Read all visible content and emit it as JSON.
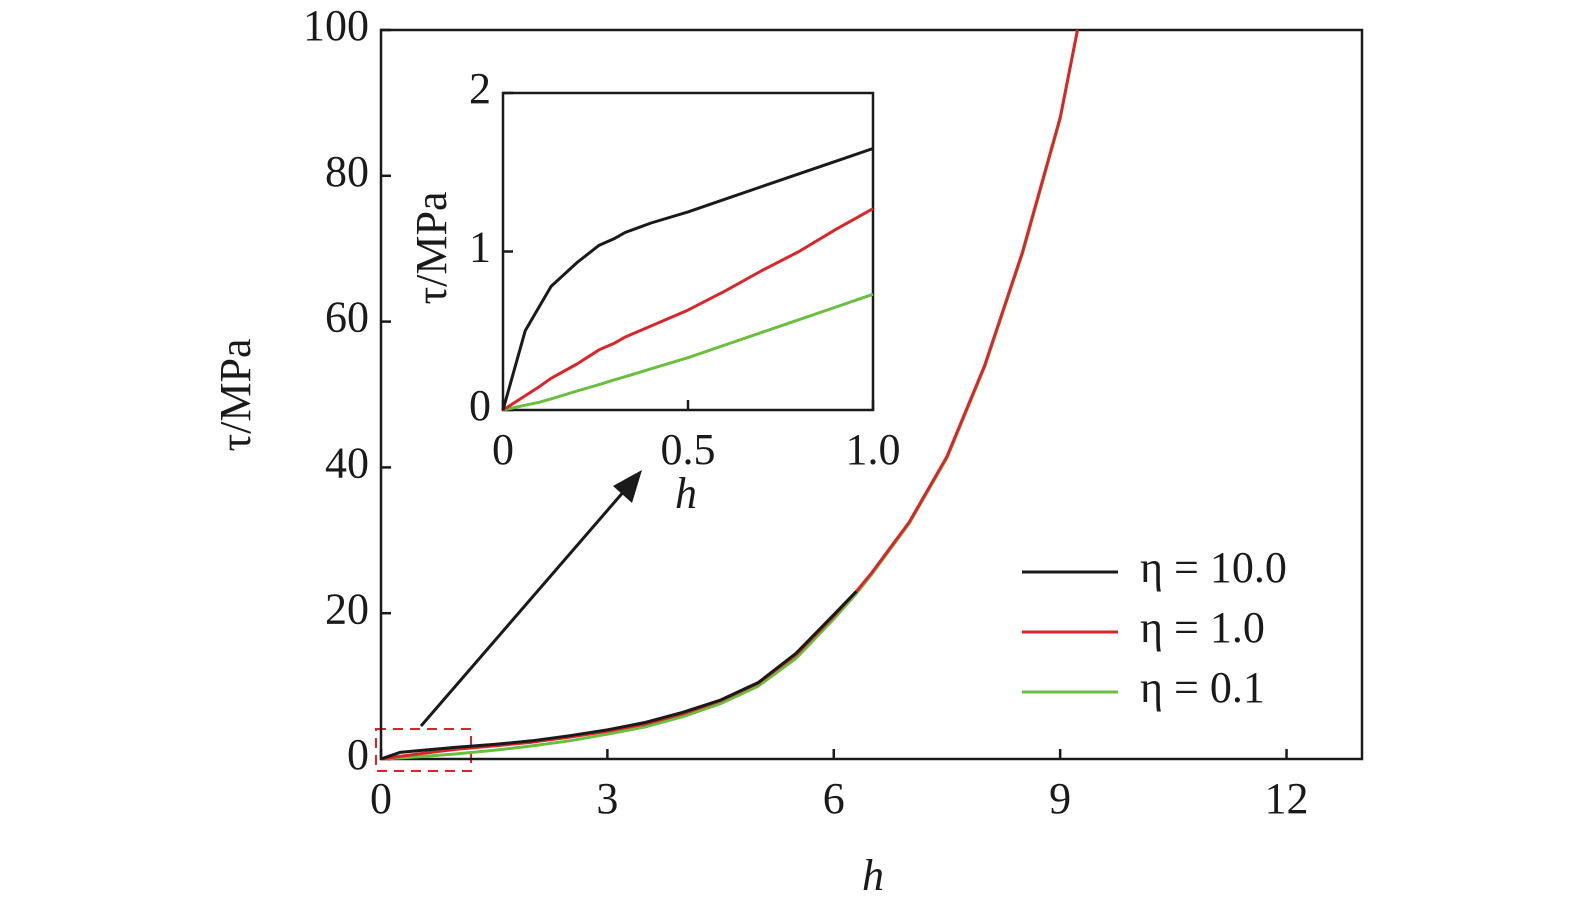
{
  "chart_data": [
    {
      "type": "line",
      "xlabel": "h",
      "ylabel": "τ/MPa",
      "x": [
        0,
        0.25,
        0.5,
        1,
        1.5,
        2,
        2.5,
        3,
        3.5,
        4,
        4.5,
        5,
        5.5,
        6,
        6.3,
        6.5,
        7,
        7.5,
        8,
        8.5,
        9,
        9.23
      ],
      "series": [
        {
          "name": "η = 10.0",
          "color": "#1a1a1a",
          "values": [
            0,
            0.9,
            1.15,
            1.6,
            2.0,
            2.5,
            3.2,
            4.0,
            5.0,
            6.4,
            8.1,
            10.5,
            14.5,
            19.8,
            23,
            null,
            null,
            null,
            null,
            null,
            null,
            null
          ]
        },
        {
          "name": "η = 1.0",
          "color": "#d9262b",
          "values": [
            0,
            0.35,
            0.7,
            1.35,
            1.8,
            2.3,
            3.0,
            3.8,
            4.8,
            6.2,
            8.0,
            10.4,
            14.3,
            19.6,
            23,
            25.5,
            32.5,
            41.5,
            54,
            69.5,
            88,
            100
          ]
        },
        {
          "name": "η = 0.1",
          "color": "#6abf3f",
          "values": [
            0,
            0.15,
            0.3,
            0.7,
            1.2,
            1.8,
            2.5,
            3.4,
            4.4,
            5.8,
            7.6,
            10,
            13.8,
            19.2,
            22.7,
            25.3,
            32.3,
            41.3,
            53.8,
            69.3,
            87.8,
            100
          ]
        }
      ],
      "xlim": [
        0,
        13
      ],
      "ylim": [
        0,
        100
      ],
      "xticks": [
        0,
        3,
        6,
        9,
        12
      ],
      "yticks": [
        0,
        20,
        40,
        60,
        80,
        100
      ],
      "legend": "lower right"
    },
    {
      "type": "line",
      "xlabel": "h",
      "ylabel": "τ/MPa",
      "x": [
        0,
        0.06,
        0.1,
        0.13,
        0.2,
        0.26,
        0.3,
        0.33,
        0.4,
        0.5,
        0.6,
        0.7,
        0.8,
        0.9,
        1.0
      ],
      "series": [
        {
          "color": "#1a1a1a",
          "values": [
            0,
            0.5,
            0.66,
            0.78,
            0.93,
            1.04,
            1.08,
            1.12,
            1.18,
            1.25,
            1.33,
            1.41,
            1.49,
            1.57,
            1.65
          ]
        },
        {
          "color": "#d9262b",
          "values": [
            0,
            0.09,
            0.15,
            0.2,
            0.29,
            0.38,
            0.42,
            0.46,
            0.53,
            0.63,
            0.75,
            0.88,
            1.0,
            1.14,
            1.27
          ]
        },
        {
          "color": "#6abf3f",
          "values": [
            0,
            0.03,
            0.05,
            0.07,
            0.12,
            0.16,
            0.19,
            0.21,
            0.26,
            0.33,
            0.41,
            0.49,
            0.57,
            0.65,
            0.73
          ]
        }
      ],
      "xlim": [
        0,
        1
      ],
      "ylim": [
        0,
        2
      ],
      "xticks": [
        0,
        0.5,
        {
          "value": 1,
          "label": "1.0"
        }
      ],
      "yticks": [
        0,
        1,
        2
      ]
    }
  ]
}
